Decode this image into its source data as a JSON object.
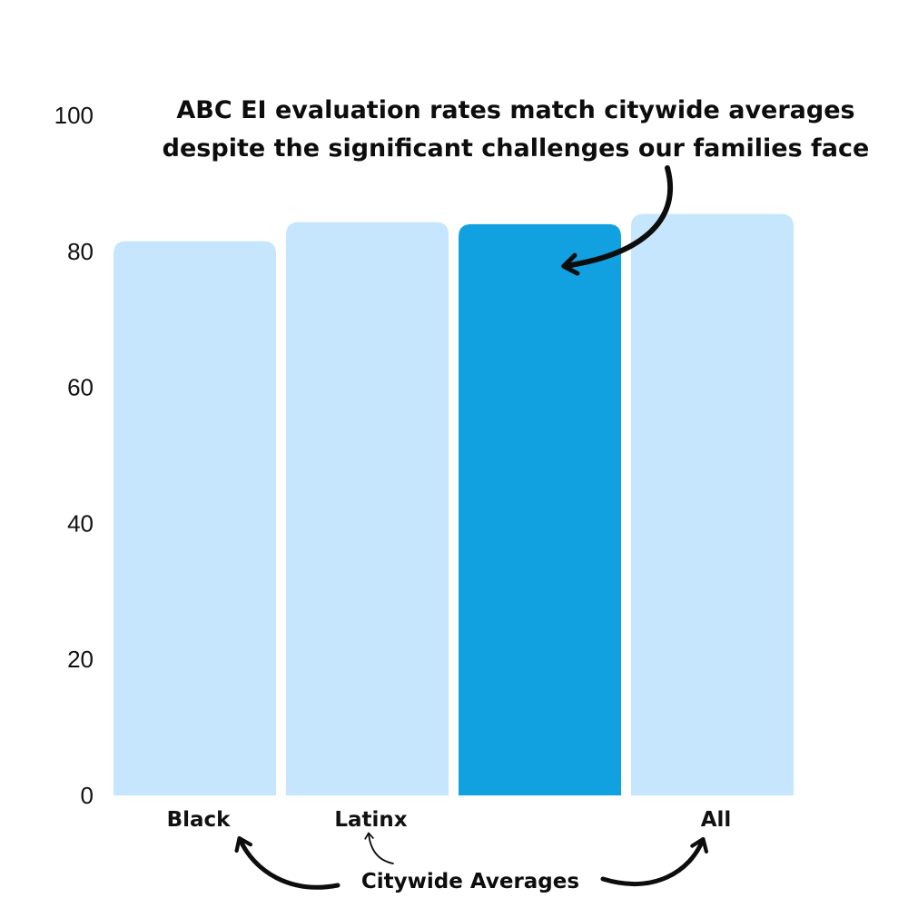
{
  "chart_data": {
    "type": "bar",
    "categories": [
      "Black",
      "Latinx",
      "",
      "All"
    ],
    "values": [
      81.5,
      84.3,
      84.0,
      85.5
    ],
    "highlight_index": 2,
    "ylim": [
      0,
      100
    ],
    "yticks": [
      0,
      20,
      40,
      60,
      80,
      100
    ],
    "grid": false,
    "colors": {
      "bar": "#c5e6fc",
      "highlight": "#11a1e1",
      "text": "#0d0d0d"
    },
    "annotations": {
      "headline_line1": "ABC EI evaluation rates match citywide averages",
      "headline_line2": "despite the significant challenges our families face",
      "footer": "Citywide Averages"
    }
  }
}
